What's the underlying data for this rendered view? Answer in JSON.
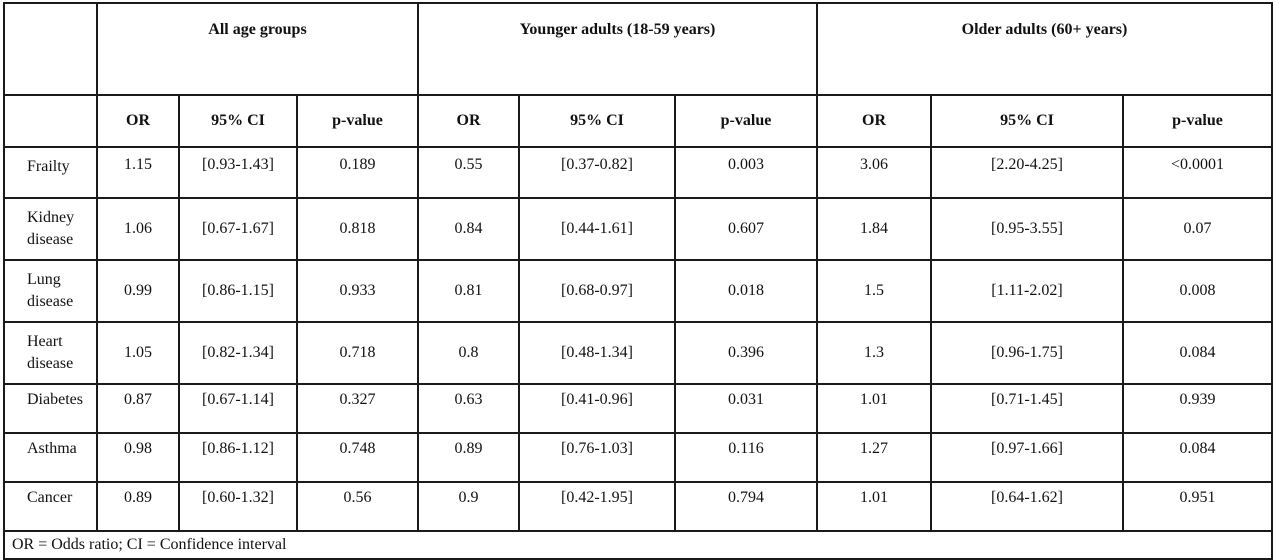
{
  "header": {
    "groups": [
      "All age groups",
      "Younger adults (18-59 years)",
      "Older  adults (60+ years)"
    ],
    "sub": [
      "OR",
      "95% CI",
      "p-value"
    ]
  },
  "rows": [
    {
      "label": "Frailty",
      "cells": [
        "1.15",
        "[0.93-1.43]",
        "0.189",
        "0.55",
        "[0.37-0.82]",
        "0.003",
        "3.06",
        "[2.20-4.25]",
        "<0.0001"
      ]
    },
    {
      "label": "Kidney disease",
      "cells": [
        "1.06",
        "[0.67-1.67]",
        "0.818",
        "0.84",
        "[0.44-1.61]",
        "0.607",
        "1.84",
        "[0.95-3.55]",
        "0.07"
      ]
    },
    {
      "label": "Lung disease",
      "cells": [
        "0.99",
        "[0.86-1.15]",
        "0.933",
        "0.81",
        "[0.68-0.97]",
        "0.018",
        "1.5",
        "[1.11-2.02]",
        "0.008"
      ]
    },
    {
      "label": "Heart disease",
      "cells": [
        "1.05",
        "[0.82-1.34]",
        "0.718",
        "0.8",
        "[0.48-1.34]",
        "0.396",
        "1.3",
        "[0.96-1.75]",
        "0.084"
      ]
    },
    {
      "label": "Diabetes",
      "cells": [
        "0.87",
        "[0.67-1.14]",
        "0.327",
        "0.63",
        "[0.41-0.96]",
        "0.031",
        "1.01",
        "[0.71-1.45]",
        "0.939"
      ]
    },
    {
      "label": "Asthma",
      "cells": [
        "0.98",
        "[0.86-1.12]",
        "0.748",
        "0.89",
        "[0.76-1.03]",
        "0.116",
        "1.27",
        "[0.97-1.66]",
        "0.084"
      ]
    },
    {
      "label": "Cancer",
      "cells": [
        "0.89",
        "[0.60-1.32]",
        "0.56",
        "0.9",
        "[0.42-1.95]",
        "0.794",
        "1.01",
        "[0.64-1.62]",
        "0.951"
      ]
    }
  ],
  "footnote": "OR = Odds ratio; CI = Confidence interval"
}
